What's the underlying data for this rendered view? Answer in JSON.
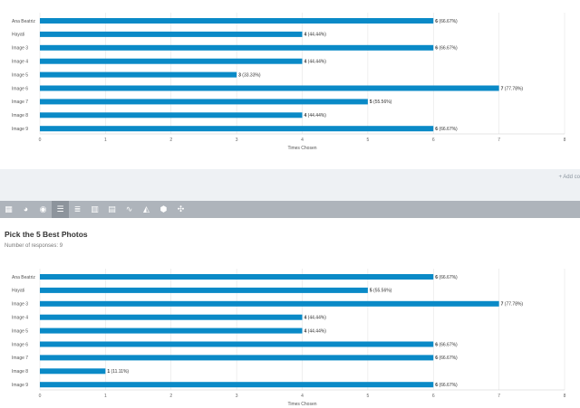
{
  "charts": [
    {
      "type": "bar",
      "orientation": "horizontal",
      "categories": [
        "Ana Beatriz",
        "Hayati",
        "Image 3",
        "Image 4",
        "Image 5",
        "Image 6",
        "Image 7",
        "Image 8",
        "Image 9"
      ],
      "values": [
        6,
        4,
        6,
        4,
        3,
        7,
        5,
        4,
        6
      ],
      "percent_labels": [
        "(66.67%)",
        "(44.44%)",
        "(66.67%)",
        "(44.44%)",
        "(33.33%)",
        "(77.78%)",
        "(55.56%)",
        "(44.44%)",
        "(66.67%)"
      ],
      "xlabel": "Times Chosen",
      "xlim": [
        0,
        8
      ],
      "x_ticks": [
        "0",
        "1",
        "2",
        "3",
        "4",
        "5",
        "6",
        "7",
        "8"
      ],
      "bar_color": "#0a8ac7"
    },
    {
      "type": "bar",
      "orientation": "horizontal",
      "categories": [
        "Ana Beatriz",
        "Hayati",
        "Image 3",
        "Image 4",
        "Image 5",
        "Image 6",
        "Image 7",
        "Image 8",
        "Image 9"
      ],
      "values": [
        6,
        5,
        7,
        4,
        4,
        6,
        6,
        1,
        6
      ],
      "percent_labels": [
        "(66.67%)",
        "(55.56%)",
        "(77.78%)",
        "(44.44%)",
        "(44.44%)",
        "(66.67%)",
        "(66.67%)",
        "(11.11%)",
        "(66.67%)"
      ],
      "xlabel": "Times Chosen",
      "xlim": [
        0,
        8
      ],
      "x_ticks": [
        "0",
        "1",
        "2",
        "3",
        "4",
        "5",
        "6",
        "7",
        "8"
      ],
      "bar_color": "#0a8ac7"
    }
  ],
  "add_link": "+ Add co",
  "toolbar": {
    "items": [
      {
        "icon": "table-icon",
        "glyph": "▦"
      },
      {
        "icon": "pie-chart-icon",
        "glyph": "◕"
      },
      {
        "icon": "donut-chart-icon",
        "glyph": "◉"
      },
      {
        "icon": "horizontal-bar-icon",
        "glyph": "☰",
        "active": true
      },
      {
        "icon": "stacked-horizontal-bar-icon",
        "glyph": "≣"
      },
      {
        "icon": "vertical-bar-icon",
        "glyph": "▥"
      },
      {
        "icon": "stacked-vertical-bar-icon",
        "glyph": "▤"
      },
      {
        "icon": "line-chart-icon",
        "glyph": "∿"
      },
      {
        "icon": "area-chart-icon",
        "glyph": "◭"
      },
      {
        "icon": "radar-chart-icon",
        "glyph": "⬢"
      },
      {
        "icon": "polar-chart-icon",
        "glyph": "✣"
      }
    ]
  },
  "question": {
    "title": "Pick the 5 Best Photos",
    "responses": "Number of responses: 9"
  }
}
